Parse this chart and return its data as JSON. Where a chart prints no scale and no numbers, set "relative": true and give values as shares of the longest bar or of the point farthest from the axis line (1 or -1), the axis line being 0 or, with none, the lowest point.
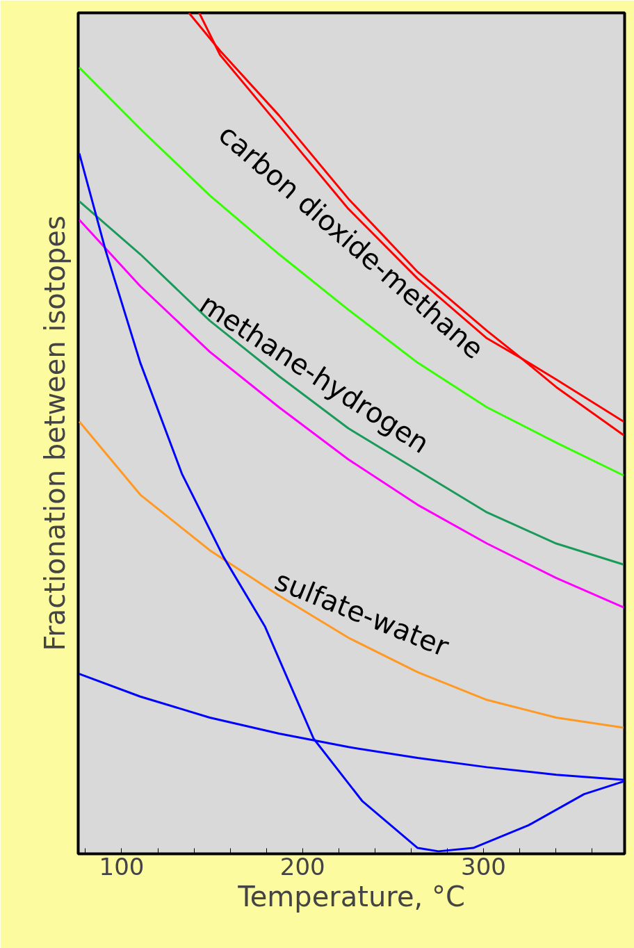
{
  "chart_data": {
    "type": "line",
    "relative": true,
    "xlabel": "Temperature, °C",
    "ylabel": "Fractionation between isotopes",
    "xlim": [
      76,
      378
    ],
    "xticks": [
      {
        "value": 80,
        "label": null
      },
      100,
      {
        "value": 120,
        "label": null
      },
      {
        "value": 140,
        "label": null
      },
      {
        "value": 160,
        "label": null
      },
      {
        "value": 180,
        "label": null
      },
      200,
      {
        "value": 220,
        "label": null
      },
      {
        "value": 240,
        "label": null
      },
      {
        "value": 260,
        "label": null
      },
      {
        "value": 280,
        "label": null
      },
      300,
      {
        "value": 320,
        "label": null
      },
      {
        "value": 340,
        "label": null
      },
      {
        "value": 360,
        "label": null
      }
    ],
    "series": [
      {
        "color": "#ff0000",
        "x": [
          137.2,
          154.4,
          187.0,
          225.3,
          263.6,
          301.9,
          321.1,
          340.2,
          377.4
        ],
        "values": [
          1.0,
          0.955,
          0.878,
          0.779,
          0.692,
          0.622,
          0.589,
          0.555,
          0.498
        ]
      },
      {
        "color": "#ff0000",
        "x": [
          142.9,
          154.4,
          187.0,
          225.3,
          263.6,
          301.9,
          321.1,
          340.2,
          377.4
        ],
        "values": [
          1.0,
          0.95,
          0.866,
          0.767,
          0.684,
          0.613,
          0.589,
          0.564,
          0.514
        ]
      },
      {
        "color": "#33ff00",
        "x": [
          76.6,
          110.3,
          148.7,
          187.0,
          225.3,
          263.6,
          301.9,
          340.2,
          377.4
        ],
        "values": [
          0.935,
          0.862,
          0.783,
          0.713,
          0.647,
          0.584,
          0.531,
          0.489,
          0.45
        ]
      },
      {
        "color": "#1a9a5a",
        "x": [
          76.6,
          110.3,
          148.7,
          187.0,
          225.3,
          263.6,
          301.9,
          340.2,
          377.4
        ],
        "values": [
          0.776,
          0.713,
          0.634,
          0.568,
          0.506,
          0.456,
          0.406,
          0.369,
          0.344
        ]
      },
      {
        "color": "#ff00ff",
        "x": [
          76.6,
          110.3,
          148.7,
          187.0,
          225.3,
          263.6,
          301.9,
          340.2,
          377.4
        ],
        "values": [
          0.754,
          0.675,
          0.597,
          0.531,
          0.469,
          0.415,
          0.369,
          0.328,
          0.293
        ]
      },
      {
        "color": "#ff9922",
        "x": [
          76.6,
          110.3,
          148.7,
          187.0,
          225.3,
          263.6,
          301.9,
          340.2,
          377.4
        ],
        "values": [
          0.514,
          0.427,
          0.361,
          0.307,
          0.257,
          0.216,
          0.183,
          0.162,
          0.15
        ]
      },
      {
        "color": "#0000ff",
        "x": [
          76.6,
          91.2,
          110.3,
          133.3,
          156.3,
          179.3,
          206.1,
          232.9,
          263.6,
          275.1,
          294.3,
          324.9,
          355.6,
          377.4
        ],
        "values": [
          0.833,
          0.717,
          0.584,
          0.452,
          0.353,
          0.27,
          0.137,
          0.063,
          0.007,
          0.003,
          0.007,
          0.034,
          0.071,
          0.086
        ]
      },
      {
        "color": "#0000ff",
        "x": [
          76.6,
          110.3,
          148.7,
          187.0,
          225.3,
          263.6,
          301.9,
          340.2,
          377.4
        ],
        "values": [
          0.214,
          0.187,
          0.162,
          0.143,
          0.127,
          0.114,
          0.103,
          0.094,
          0.088
        ]
      }
    ],
    "annotations": [
      "carbon dioxide-methane",
      "methane-hydrogen",
      "sulfate-water"
    ]
  }
}
